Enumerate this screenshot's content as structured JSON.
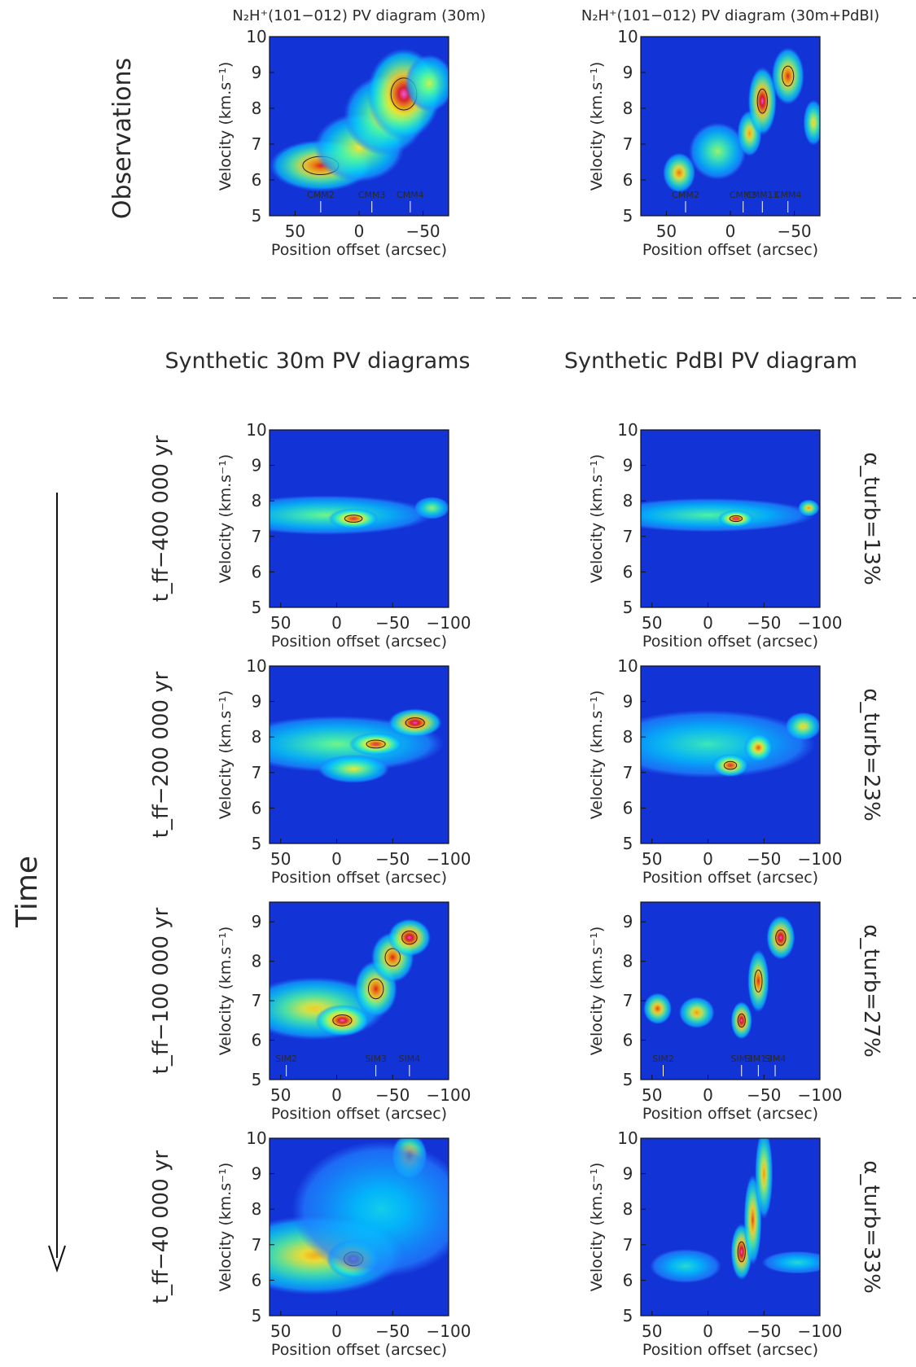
{
  "header": {
    "observations": "Observations",
    "synthetic_30m": "Synthetic 30m PV diagrams",
    "synthetic_pdbi": "Synthetic PdBI PV diagram",
    "time": "Time"
  },
  "chart_data": [
    {
      "id": "obs-30m",
      "type": "heatmap",
      "title": "N₂H⁺(101−012) PV diagram (30m)",
      "xlabel": "Position offset (arcsec)",
      "ylabel": "Velocity (km.s⁻¹)",
      "xlim": [
        70,
        -70
      ],
      "ylim": [
        5,
        10
      ],
      "xticks": [
        50,
        0,
        -50
      ],
      "yticks": [
        5,
        6,
        7,
        8,
        9,
        10
      ],
      "markers": [
        {
          "label": "CMM2",
          "x": 30
        },
        {
          "label": "CMM3",
          "x": -10
        },
        {
          "label": "CMM4",
          "x": -40
        }
      ],
      "emission": [
        {
          "x": 30,
          "v": 6.4,
          "sx": 25,
          "sv": 0.45,
          "a": 0.85
        },
        {
          "x": 0,
          "v": 6.9,
          "sx": 22,
          "sv": 0.6,
          "a": 0.55
        },
        {
          "x": -20,
          "v": 7.8,
          "sx": 20,
          "sv": 0.7,
          "a": 0.6
        },
        {
          "x": -35,
          "v": 8.4,
          "sx": 18,
          "sv": 0.8,
          "a": 1.0
        },
        {
          "x": -55,
          "v": 8.7,
          "sx": 12,
          "sv": 0.5,
          "a": 0.5
        }
      ]
    },
    {
      "id": "obs-30m-pdbi",
      "type": "heatmap",
      "title": "N₂H⁺(101−012) PV diagram (30m+PdBI)",
      "xlabel": "Position offset (arcsec)",
      "ylabel": "Velocity (km.s⁻¹)",
      "xlim": [
        70,
        -70
      ],
      "ylim": [
        5,
        10
      ],
      "xticks": [
        50,
        0,
        -50
      ],
      "yticks": [
        5,
        6,
        7,
        8,
        9,
        10
      ],
      "markers": [
        {
          "label": "CMM2",
          "x": 35
        },
        {
          "label": "CMM3",
          "x": -10
        },
        {
          "label": "CMM13",
          "x": -25
        },
        {
          "label": "CMM4",
          "x": -45
        }
      ],
      "emission": [
        {
          "x": 40,
          "v": 6.2,
          "sx": 8,
          "sv": 0.35,
          "a": 0.75
        },
        {
          "x": 10,
          "v": 6.8,
          "sx": 14,
          "sv": 0.5,
          "a": 0.45
        },
        {
          "x": -15,
          "v": 7.3,
          "sx": 6,
          "sv": 0.4,
          "a": 0.7
        },
        {
          "x": -25,
          "v": 8.2,
          "sx": 7,
          "sv": 0.6,
          "a": 1.0
        },
        {
          "x": -45,
          "v": 8.9,
          "sx": 8,
          "sv": 0.5,
          "a": 0.85
        },
        {
          "x": -65,
          "v": 7.6,
          "sx": 5,
          "sv": 0.4,
          "a": 0.6
        }
      ]
    },
    {
      "id": "syn30m-400k",
      "type": "heatmap",
      "time_label": "t_ff−400 000 yr",
      "xlabel": "Position offset (arcsec)",
      "ylabel": "Velocity (km.s⁻¹)",
      "xlim": [
        60,
        -100
      ],
      "ylim": [
        5,
        10
      ],
      "xticks": [
        50,
        0,
        -50,
        -100
      ],
      "yticks": [
        5,
        6,
        7,
        8,
        9,
        10
      ],
      "emission": [
        {
          "x": 10,
          "v": 7.6,
          "sx": 60,
          "sv": 0.35,
          "a": 0.4
        },
        {
          "x": -15,
          "v": 7.5,
          "sx": 14,
          "sv": 0.18,
          "a": 0.9
        },
        {
          "x": -85,
          "v": 7.8,
          "sx": 10,
          "sv": 0.2,
          "a": 0.45
        }
      ]
    },
    {
      "id": "synpdbi-400k",
      "type": "heatmap",
      "alpha_label": "α_turb=13%",
      "xlabel": "Position offset (arcsec)",
      "ylabel": "Velocity (km.s⁻¹)",
      "xlim": [
        60,
        -100
      ],
      "ylim": [
        5,
        10
      ],
      "xticks": [
        50,
        0,
        -50,
        -100
      ],
      "yticks": [
        5,
        6,
        7,
        8,
        9,
        10
      ],
      "emission": [
        {
          "x": 0,
          "v": 7.6,
          "sx": 60,
          "sv": 0.3,
          "a": 0.35
        },
        {
          "x": -25,
          "v": 7.5,
          "sx": 10,
          "sv": 0.15,
          "a": 0.95
        },
        {
          "x": -90,
          "v": 7.8,
          "sx": 6,
          "sv": 0.15,
          "a": 0.7
        }
      ]
    },
    {
      "id": "syn30m-200k",
      "type": "heatmap",
      "time_label": "t_ff−200 000 yr",
      "xlabel": "Position offset (arcsec)",
      "ylabel": "Velocity (km.s⁻¹)",
      "xlim": [
        60,
        -100
      ],
      "ylim": [
        5,
        10
      ],
      "xticks": [
        50,
        0,
        -50,
        -100
      ],
      "yticks": [
        5,
        6,
        7,
        8,
        9,
        10
      ],
      "emission": [
        {
          "x": 0,
          "v": 7.8,
          "sx": 60,
          "sv": 0.5,
          "a": 0.4
        },
        {
          "x": -15,
          "v": 7.1,
          "sx": 20,
          "sv": 0.25,
          "a": 0.55
        },
        {
          "x": -35,
          "v": 7.8,
          "sx": 15,
          "sv": 0.2,
          "a": 0.9
        },
        {
          "x": -70,
          "v": 8.4,
          "sx": 15,
          "sv": 0.25,
          "a": 1.0
        }
      ]
    },
    {
      "id": "synpdbi-200k",
      "type": "heatmap",
      "alpha_label": "α_turb=23%",
      "xlabel": "Position offset (arcsec)",
      "ylabel": "Velocity (km.s⁻¹)",
      "xlim": [
        60,
        -100
      ],
      "ylim": [
        5,
        10
      ],
      "xticks": [
        50,
        0,
        -50,
        -100
      ],
      "yticks": [
        5,
        6,
        7,
        8,
        9,
        10
      ],
      "emission": [
        {
          "x": 0,
          "v": 7.8,
          "sx": 60,
          "sv": 0.6,
          "a": 0.3
        },
        {
          "x": -20,
          "v": 7.2,
          "sx": 10,
          "sv": 0.2,
          "a": 0.9
        },
        {
          "x": -45,
          "v": 7.7,
          "sx": 8,
          "sv": 0.25,
          "a": 0.8
        },
        {
          "x": -85,
          "v": 8.3,
          "sx": 10,
          "sv": 0.25,
          "a": 0.6
        }
      ]
    },
    {
      "id": "syn30m-100k",
      "type": "heatmap",
      "time_label": "t_ff−100 000 yr",
      "xlabel": "Position offset (arcsec)",
      "ylabel": "Velocity (km.s⁻¹)",
      "xlim": [
        60,
        -100
      ],
      "ylim": [
        5,
        9.5
      ],
      "xticks": [
        50,
        0,
        -50,
        -100
      ],
      "yticks": [
        5,
        6,
        7,
        8,
        9
      ],
      "markers": [
        {
          "label": "SIM2",
          "x": 45
        },
        {
          "label": "SIM3",
          "x": -35
        },
        {
          "label": "SIM4",
          "x": -65
        }
      ],
      "emission": [
        {
          "x": 20,
          "v": 6.8,
          "sx": 40,
          "sv": 0.5,
          "a": 0.6
        },
        {
          "x": -5,
          "v": 6.5,
          "sx": 15,
          "sv": 0.25,
          "a": 1.0
        },
        {
          "x": -35,
          "v": 7.3,
          "sx": 12,
          "sv": 0.45,
          "a": 0.85
        },
        {
          "x": -50,
          "v": 8.1,
          "sx": 12,
          "sv": 0.4,
          "a": 0.85
        },
        {
          "x": -65,
          "v": 8.6,
          "sx": 12,
          "sv": 0.3,
          "a": 1.0
        }
      ]
    },
    {
      "id": "synpdbi-100k",
      "type": "heatmap",
      "alpha_label": "α_turb=27%",
      "xlabel": "Position offset (arcsec)",
      "ylabel": "Velocity (km.s⁻¹)",
      "xlim": [
        60,
        -100
      ],
      "ylim": [
        5,
        9.5
      ],
      "xticks": [
        50,
        0,
        -50,
        -100
      ],
      "yticks": [
        5,
        6,
        7,
        8,
        9
      ],
      "markers": [
        {
          "label": "SIM2",
          "x": 40
        },
        {
          "label": "SIM3",
          "x": -30
        },
        {
          "label": "SIM13",
          "x": -45
        },
        {
          "label": "SIM4",
          "x": -60
        }
      ],
      "emission": [
        {
          "x": 45,
          "v": 6.8,
          "sx": 8,
          "sv": 0.25,
          "a": 0.8
        },
        {
          "x": 10,
          "v": 6.7,
          "sx": 10,
          "sv": 0.25,
          "a": 0.7
        },
        {
          "x": -30,
          "v": 6.5,
          "sx": 6,
          "sv": 0.3,
          "a": 1.0
        },
        {
          "x": -45,
          "v": 7.5,
          "sx": 6,
          "sv": 0.5,
          "a": 0.85
        },
        {
          "x": -65,
          "v": 8.6,
          "sx": 8,
          "sv": 0.35,
          "a": 1.0
        }
      ]
    },
    {
      "id": "syn30m-40k",
      "type": "heatmap",
      "time_label": "t_ff−40 000 yr",
      "xlabel": "Position offset (arcsec)",
      "ylabel": "Velocity (km.s⁻¹)",
      "xlim": [
        60,
        -100
      ],
      "ylim": [
        5,
        10
      ],
      "xticks": [
        50,
        0,
        -50,
        -100
      ],
      "yticks": [
        5,
        6,
        7,
        8,
        9,
        10
      ],
      "emission": [
        {
          "x": 20,
          "v": 6.7,
          "sx": 50,
          "sv": 0.7,
          "a": 0.65
        },
        {
          "x": -15,
          "v": 6.6,
          "sx": 15,
          "sv": 0.35,
          "a": 1.0
        },
        {
          "x": -65,
          "v": 9.5,
          "sx": 10,
          "sv": 0.4,
          "a": 0.8
        },
        {
          "x": -40,
          "v": 8.0,
          "sx": 50,
          "sv": 1.2,
          "a": 0.2
        }
      ]
    },
    {
      "id": "synpdbi-40k",
      "type": "heatmap",
      "alpha_label": "α_turb=33%",
      "xlabel": "Position offset (arcsec)",
      "ylabel": "Velocity (km.s⁻¹)",
      "xlim": [
        60,
        -100
      ],
      "ylim": [
        5,
        10
      ],
      "xticks": [
        50,
        0,
        -50,
        -100
      ],
      "yticks": [
        5,
        6,
        7,
        8,
        9,
        10
      ],
      "emission": [
        {
          "x": -30,
          "v": 6.8,
          "sx": 6,
          "sv": 0.5,
          "a": 1.0
        },
        {
          "x": -40,
          "v": 7.7,
          "sx": 5,
          "sv": 0.8,
          "a": 0.8
        },
        {
          "x": -50,
          "v": 9.0,
          "sx": 5,
          "sv": 0.8,
          "a": 0.7
        },
        {
          "x": 20,
          "v": 6.4,
          "sx": 20,
          "sv": 0.3,
          "a": 0.25
        },
        {
          "x": -80,
          "v": 6.5,
          "sx": 20,
          "sv": 0.2,
          "a": 0.25
        }
      ]
    }
  ]
}
